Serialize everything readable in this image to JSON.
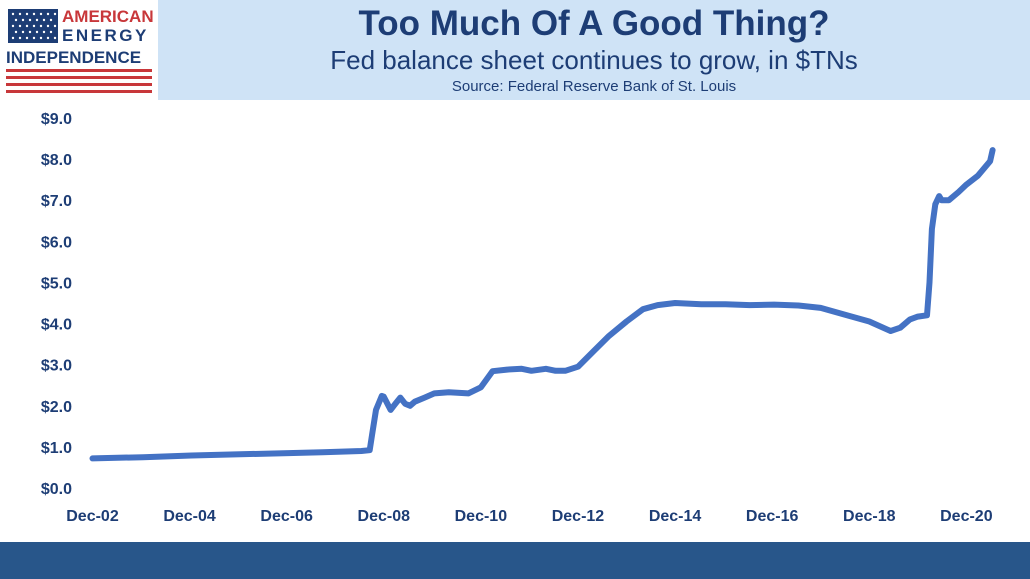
{
  "logo": {
    "line1": "AMERICAN",
    "line2": "ENERGY",
    "line3": "INDEPENDENCE",
    "colors": {
      "red": "#c8373a",
      "navy": "#1d3d75"
    }
  },
  "header": {
    "title": "Too Much Of A Good Thing?",
    "subtitle": "Fed balance sheet continues to grow, in $TNs",
    "source": "Source: Federal Reserve Bank of St. Louis"
  },
  "colors": {
    "header_bg": "#cfe3f6",
    "footer_bar": "#28568a",
    "line": "#4472c4",
    "text": "#1d3d75"
  },
  "chart_data": {
    "type": "line",
    "title": "Too Much Of A Good Thing?",
    "subtitle": "Fed balance sheet continues to grow, in $TNs",
    "xlabel": "",
    "ylabel": "",
    "grid": false,
    "legend": "none",
    "ylim": [
      0,
      9
    ],
    "y_ticks": [
      {
        "value": 0,
        "label": "$0.0"
      },
      {
        "value": 1,
        "label": "$1.0"
      },
      {
        "value": 2,
        "label": "$2.0"
      },
      {
        "value": 3,
        "label": "$3.0"
      },
      {
        "value": 4,
        "label": "$4.0"
      },
      {
        "value": 5,
        "label": "$5.0"
      },
      {
        "value": 6,
        "label": "$6.0"
      },
      {
        "value": 7,
        "label": "$7.0"
      },
      {
        "value": 8,
        "label": "$8.0"
      },
      {
        "value": 9,
        "label": "$9.0"
      }
    ],
    "xlim": [
      2002.95,
      2021.55
    ],
    "x_ticks": [
      {
        "value": 2002.96,
        "label": "Dec-02"
      },
      {
        "value": 2004.96,
        "label": "Dec-04"
      },
      {
        "value": 2006.96,
        "label": "Dec-06"
      },
      {
        "value": 2008.96,
        "label": "Dec-08"
      },
      {
        "value": 2010.96,
        "label": "Dec-10"
      },
      {
        "value": 2012.96,
        "label": "Dec-12"
      },
      {
        "value": 2014.96,
        "label": "Dec-14"
      },
      {
        "value": 2016.96,
        "label": "Dec-16"
      },
      {
        "value": 2018.96,
        "label": "Dec-18"
      },
      {
        "value": 2020.96,
        "label": "Dec-20"
      }
    ],
    "series": [
      {
        "x": [
          2002.96,
          2004.0,
          2005.0,
          2006.0,
          2007.0,
          2007.7,
          2008.5,
          2008.67,
          2008.72,
          2008.8,
          2008.92,
          2008.96,
          2009.1,
          2009.2,
          2009.3,
          2009.4,
          2009.5,
          2009.6,
          2009.8,
          2010.0,
          2010.3,
          2010.7,
          2010.96,
          2011.2,
          2011.5,
          2011.8,
          2012.0,
          2012.3,
          2012.5,
          2012.7,
          2012.96,
          2013.3,
          2013.6,
          2013.96,
          2014.3,
          2014.6,
          2014.96,
          2015.5,
          2016.0,
          2016.5,
          2017.0,
          2017.5,
          2017.96,
          2018.5,
          2018.96,
          2019.4,
          2019.6,
          2019.8,
          2019.96,
          2020.15,
          2020.2,
          2020.25,
          2020.32,
          2020.4,
          2020.45,
          2020.6,
          2020.8,
          2020.96,
          2021.2,
          2021.45,
          2021.5
        ],
        "values": [
          0.72,
          0.75,
          0.79,
          0.82,
          0.85,
          0.87,
          0.9,
          0.92,
          1.3,
          1.9,
          2.24,
          2.22,
          1.9,
          2.05,
          2.2,
          2.05,
          2.0,
          2.1,
          2.2,
          2.3,
          2.33,
          2.3,
          2.45,
          2.84,
          2.88,
          2.9,
          2.85,
          2.9,
          2.85,
          2.85,
          2.95,
          3.35,
          3.7,
          4.05,
          4.35,
          4.45,
          4.5,
          4.47,
          4.47,
          4.45,
          4.46,
          4.44,
          4.38,
          4.2,
          4.05,
          3.82,
          3.9,
          4.1,
          4.17,
          4.2,
          5.0,
          6.3,
          6.9,
          7.1,
          7.0,
          7.0,
          7.2,
          7.38,
          7.6,
          7.95,
          8.22
        ]
      }
    ]
  }
}
